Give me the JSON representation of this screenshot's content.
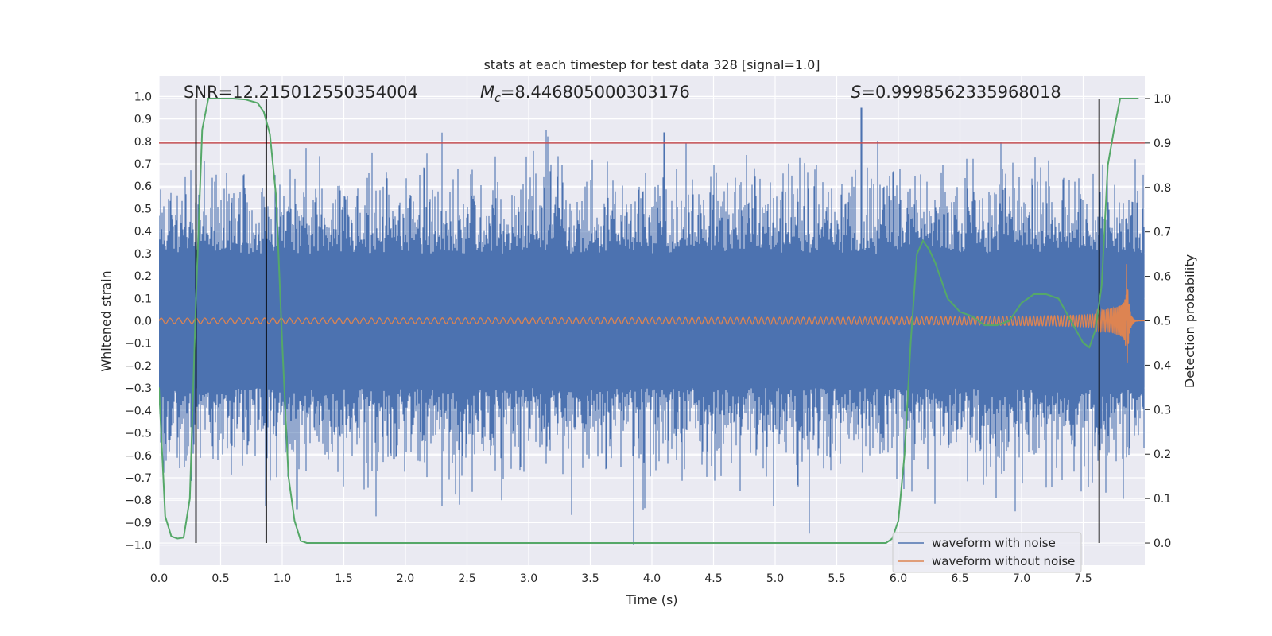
{
  "chart_data": {
    "type": "line",
    "title": "stats at each timestep for test data 328 [signal=1.0]",
    "xlabel": "Time (s)",
    "ylabel": "Whitened strain",
    "y2label": "Detection probability",
    "xlim": [
      0.0,
      8.0
    ],
    "ylim": [
      -1.09,
      1.09
    ],
    "y2lim": [
      -0.05,
      1.05
    ],
    "xticks": [
      "0.0",
      "0.5",
      "1.0",
      "1.5",
      "2.0",
      "2.5",
      "3.0",
      "3.5",
      "4.0",
      "4.5",
      "5.0",
      "5.5",
      "6.0",
      "6.5",
      "7.0",
      "7.5"
    ],
    "yticks": [
      "1.0",
      "0.9",
      "0.8",
      "0.7",
      "0.6",
      "0.5",
      "0.4",
      "0.3",
      "0.2",
      "0.1",
      "0.0",
      "-0.1",
      "-0.2",
      "-0.3",
      "-0.4",
      "-0.5",
      "-0.6",
      "-0.7",
      "-0.8",
      "-0.9",
      "-1.0"
    ],
    "y2ticks": [
      "1.0",
      "0.9",
      "0.8",
      "0.7",
      "0.6",
      "0.5",
      "0.4",
      "0.3",
      "0.2",
      "0.1",
      "0.0"
    ],
    "grid": true,
    "legend_position": "bottom-right",
    "annotations": {
      "snr": "SNR=12.215012550354004",
      "mc_symbol": "M",
      "mc_sub": "c",
      "mc_value": "=8.446805000303176",
      "s_symbol": "S",
      "s_value": "=0.9998562335968018"
    },
    "series": [
      {
        "name": "waveform with noise",
        "color": "#4c72b0",
        "axis": "left",
        "description_values": {
          "typical_amplitude": 0.4,
          "max_peak": 0.95,
          "min_peak": -1.0
        }
      },
      {
        "name": "waveform without noise",
        "color": "#dd8452",
        "axis": "left",
        "chirp": {
          "t_merger": 7.85,
          "amp_start": 0.012,
          "amp_peak": 0.3,
          "f_start": 14,
          "f_peak": 100
        }
      },
      {
        "name": "",
        "color": "#55a868",
        "axis": "right",
        "x": [
          0.0,
          0.05,
          0.1,
          0.15,
          0.2,
          0.25,
          0.3,
          0.35,
          0.4,
          0.45,
          0.5,
          0.6,
          0.7,
          0.8,
          0.85,
          0.9,
          0.95,
          1.0,
          1.05,
          1.1,
          1.15,
          1.2,
          1.3,
          1.5,
          2.0,
          3.0,
          4.0,
          5.0,
          5.5,
          5.9,
          5.95,
          6.0,
          6.05,
          6.1,
          6.15,
          6.2,
          6.25,
          6.3,
          6.4,
          6.5,
          6.6,
          6.7,
          6.8,
          6.9,
          7.0,
          7.1,
          7.2,
          7.3,
          7.4,
          7.5,
          7.55,
          7.6,
          7.65,
          7.7,
          7.75,
          7.8,
          7.85,
          7.95
        ],
        "values": [
          0.35,
          0.06,
          0.015,
          0.01,
          0.012,
          0.1,
          0.55,
          0.93,
          1.0,
          1.0,
          1.0,
          1.0,
          0.998,
          0.99,
          0.97,
          0.92,
          0.78,
          0.45,
          0.15,
          0.05,
          0.005,
          0.0,
          0.0,
          0.0,
          0.0,
          0.0,
          0.0,
          0.0,
          0.0,
          0.0,
          0.01,
          0.05,
          0.2,
          0.45,
          0.65,
          0.68,
          0.66,
          0.63,
          0.55,
          0.52,
          0.51,
          0.49,
          0.49,
          0.5,
          0.54,
          0.56,
          0.56,
          0.55,
          0.5,
          0.45,
          0.44,
          0.48,
          0.58,
          0.85,
          0.93,
          1.0,
          1.0,
          1.0
        ]
      }
    ],
    "hlines": [
      {
        "value": 0.9,
        "axis": "right",
        "color": "#c44e52"
      }
    ],
    "vlines": [
      {
        "x": 0.3,
        "y2_from": 0.0,
        "y2_to": 1.0,
        "color": "#000000"
      },
      {
        "x": 0.87,
        "y2_from": 0.0,
        "y2_to": 1.0,
        "color": "#000000"
      },
      {
        "x": 7.63,
        "y2_from": 0.0,
        "y2_to": 1.0,
        "color": "#000000"
      }
    ]
  }
}
